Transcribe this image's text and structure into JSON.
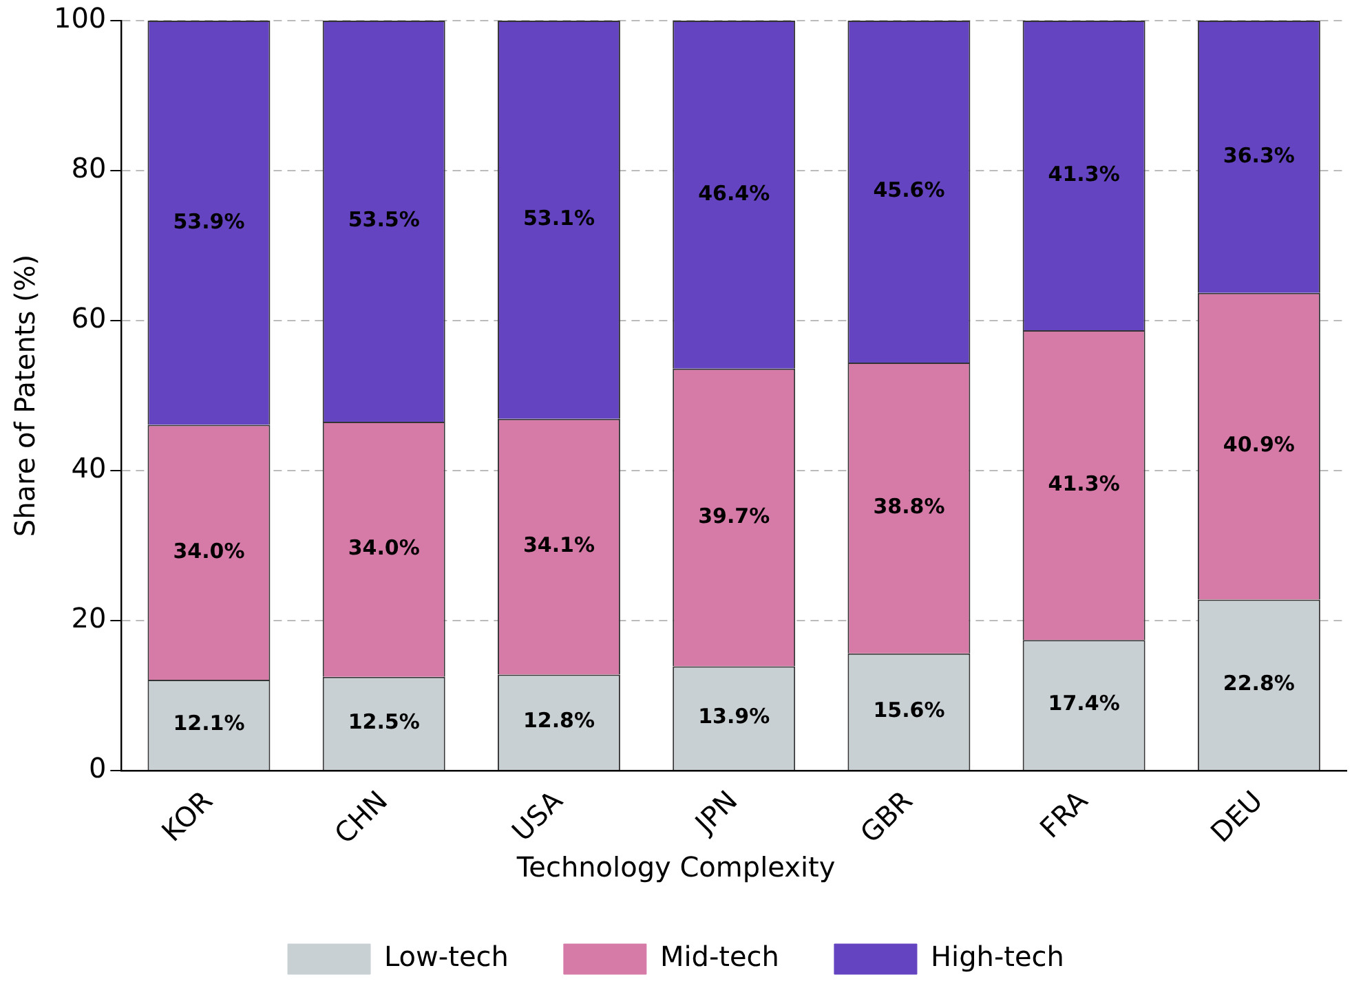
{
  "chart_data": {
    "type": "bar",
    "stacked": true,
    "ylabel": "Share of Patents (%)",
    "legend_title": "Technology Complexity",
    "categories": [
      "KOR",
      "CHN",
      "USA",
      "JPN",
      "GBR",
      "FRA",
      "DEU"
    ],
    "series": [
      {
        "name": "Low-tech",
        "color": "#c9d0d4",
        "values": [
          12.1,
          12.5,
          12.8,
          13.9,
          15.6,
          17.4,
          22.8
        ],
        "value_labels": [
          "12.1%",
          "12.5%",
          "12.8%",
          "13.9%",
          "15.6%",
          "17.4%",
          "22.8%"
        ]
      },
      {
        "name": "Mid-tech",
        "color": "#d67aa7",
        "values": [
          34.0,
          34.0,
          34.1,
          39.7,
          38.8,
          41.3,
          40.9
        ],
        "value_labels": [
          "34.0%",
          "34.0%",
          "34.1%",
          "39.7%",
          "38.8%",
          "41.3%",
          "40.9%"
        ]
      },
      {
        "name": "High-tech",
        "color": "#6444c0",
        "values": [
          53.9,
          53.5,
          53.1,
          46.4,
          45.6,
          41.3,
          36.3
        ],
        "value_labels": [
          "53.9%",
          "53.5%",
          "53.1%",
          "46.4%",
          "45.6%",
          "41.3%",
          "36.3%"
        ]
      }
    ],
    "ylim": [
      0,
      100
    ],
    "yticks": [
      0,
      20,
      40,
      60,
      80,
      100
    ],
    "grid": "y",
    "legend": "bottom"
  }
}
